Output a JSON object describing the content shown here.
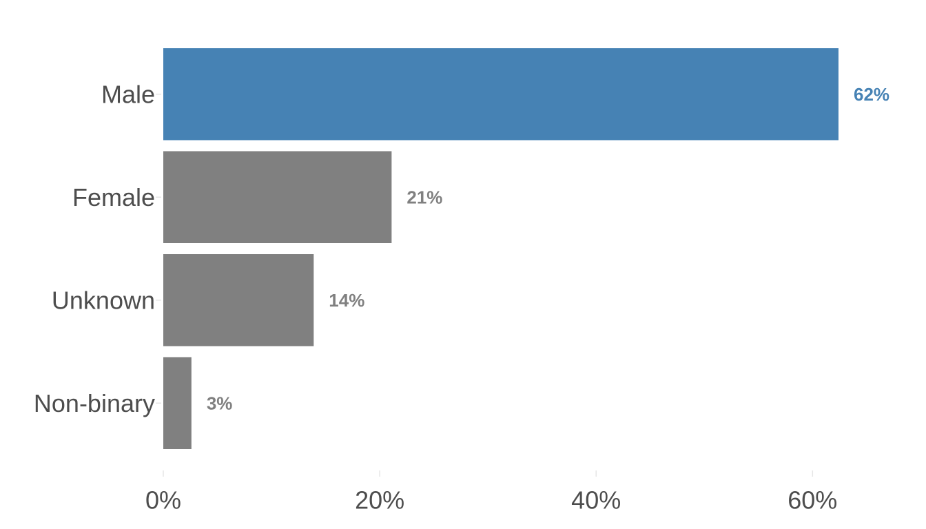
{
  "chart_data": {
    "type": "bar",
    "orientation": "horizontal",
    "categories": [
      "Male",
      "Female",
      "Unknown",
      "Non-binary"
    ],
    "values": [
      62.4,
      21.1,
      13.9,
      2.6
    ],
    "value_labels": [
      "62%",
      "21%",
      "14%",
      "3%"
    ],
    "highlight_category": "Male",
    "colors": {
      "highlight": "#4682b4",
      "default": "#808080",
      "axis_text": "#4d4d4d",
      "tick": "#e6e6e6"
    },
    "xticks": [
      0,
      20,
      40,
      60
    ],
    "xtick_labels": [
      "0%",
      "20%",
      "40%",
      "60%"
    ],
    "xlim": [
      0,
      62.4
    ],
    "title": "",
    "xlabel": "",
    "ylabel": "",
    "grid": false,
    "legend": "none"
  }
}
